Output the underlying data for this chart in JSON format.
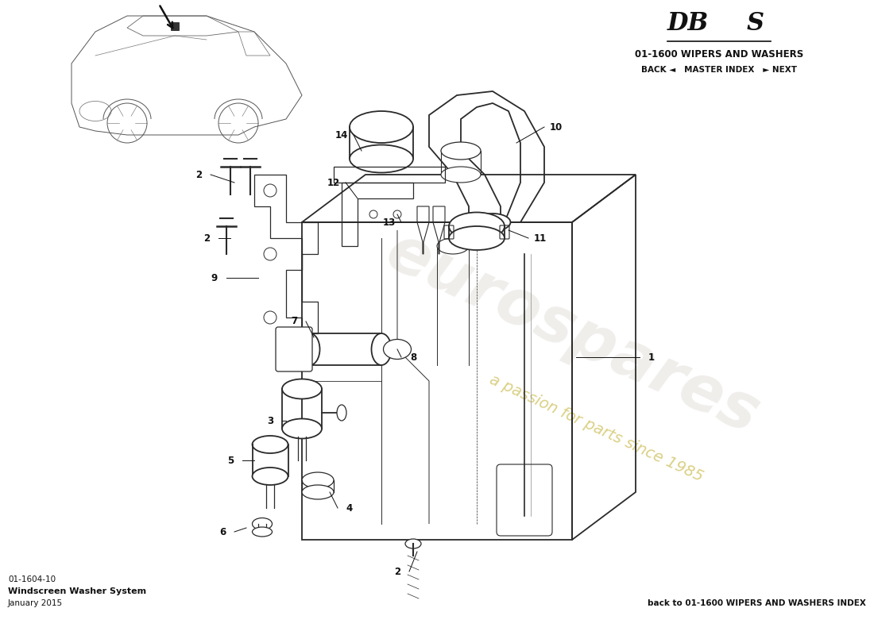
{
  "title_model": "DBS",
  "title_section": "01-1600 WIPERS AND WASHERS",
  "title_nav": "BACK ◄   MASTER INDEX   ► NEXT",
  "part_number": "01-1604-10",
  "part_name": "Windscreen Washer System",
  "part_date": "January 2015",
  "footer_text": "back to 01-1600 WIPERS AND WASHERS INDEX",
  "background_color": "#ffffff",
  "watermark_text": "eurospares",
  "watermark_subtext": "a passion for parts since 1985",
  "watermark_color_text": "#d4c870",
  "watermark_color_logo": "#e0ddd8",
  "line_color": "#2a2a2a",
  "label_color": "#1a1a1a",
  "light_line": "#888888"
}
